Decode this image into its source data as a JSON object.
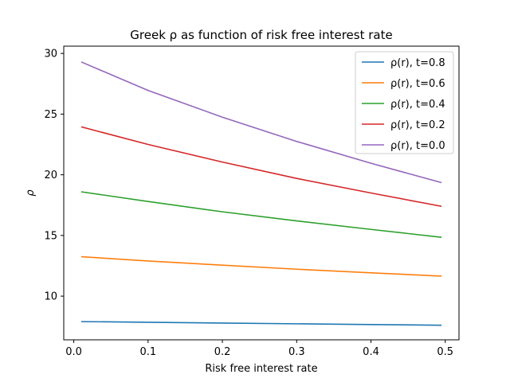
{
  "chart_data": {
    "type": "line",
    "title": "Greek ρ as function of risk free interest rate",
    "xlabel": "Risk free interest rate",
    "ylabel": "ρ",
    "xlim": [
      -0.0135,
      0.5185
    ],
    "ylim": [
      6.4,
      30.6
    ],
    "xticks": [
      0.0,
      0.1,
      0.2,
      0.3,
      0.4,
      0.5
    ],
    "xtick_labels": [
      "0.0",
      "0.1",
      "0.2",
      "0.3",
      "0.4",
      "0.5"
    ],
    "yticks": [
      10,
      15,
      20,
      25,
      30
    ],
    "ytick_labels": [
      "10",
      "15",
      "20",
      "25",
      "30"
    ],
    "grid": false,
    "legend_position": "top-right",
    "x": [
      0.01,
      0.1,
      0.2,
      0.3,
      0.4,
      0.495
    ],
    "series": [
      {
        "name": "ρ(r), t=0.8",
        "color": "#1f77b4",
        "values": [
          7.9,
          7.85,
          7.78,
          7.72,
          7.66,
          7.6
        ]
      },
      {
        "name": "ρ(r), t=0.6",
        "color": "#ff7f0e",
        "values": [
          13.25,
          12.9,
          12.55,
          12.22,
          11.92,
          11.65
        ]
      },
      {
        "name": "ρ(r), t=0.4",
        "color": "#2ca02c",
        "values": [
          18.6,
          17.8,
          16.95,
          16.2,
          15.5,
          14.85
        ]
      },
      {
        "name": "ρ(r), t=0.2",
        "color": "#d62728",
        "values": [
          23.95,
          22.5,
          21.05,
          19.7,
          18.5,
          17.4
        ]
      },
      {
        "name": "ρ(r), t=0.0",
        "color": "#9467bd",
        "values": [
          29.3,
          26.95,
          24.75,
          22.75,
          20.95,
          19.35
        ]
      }
    ]
  }
}
